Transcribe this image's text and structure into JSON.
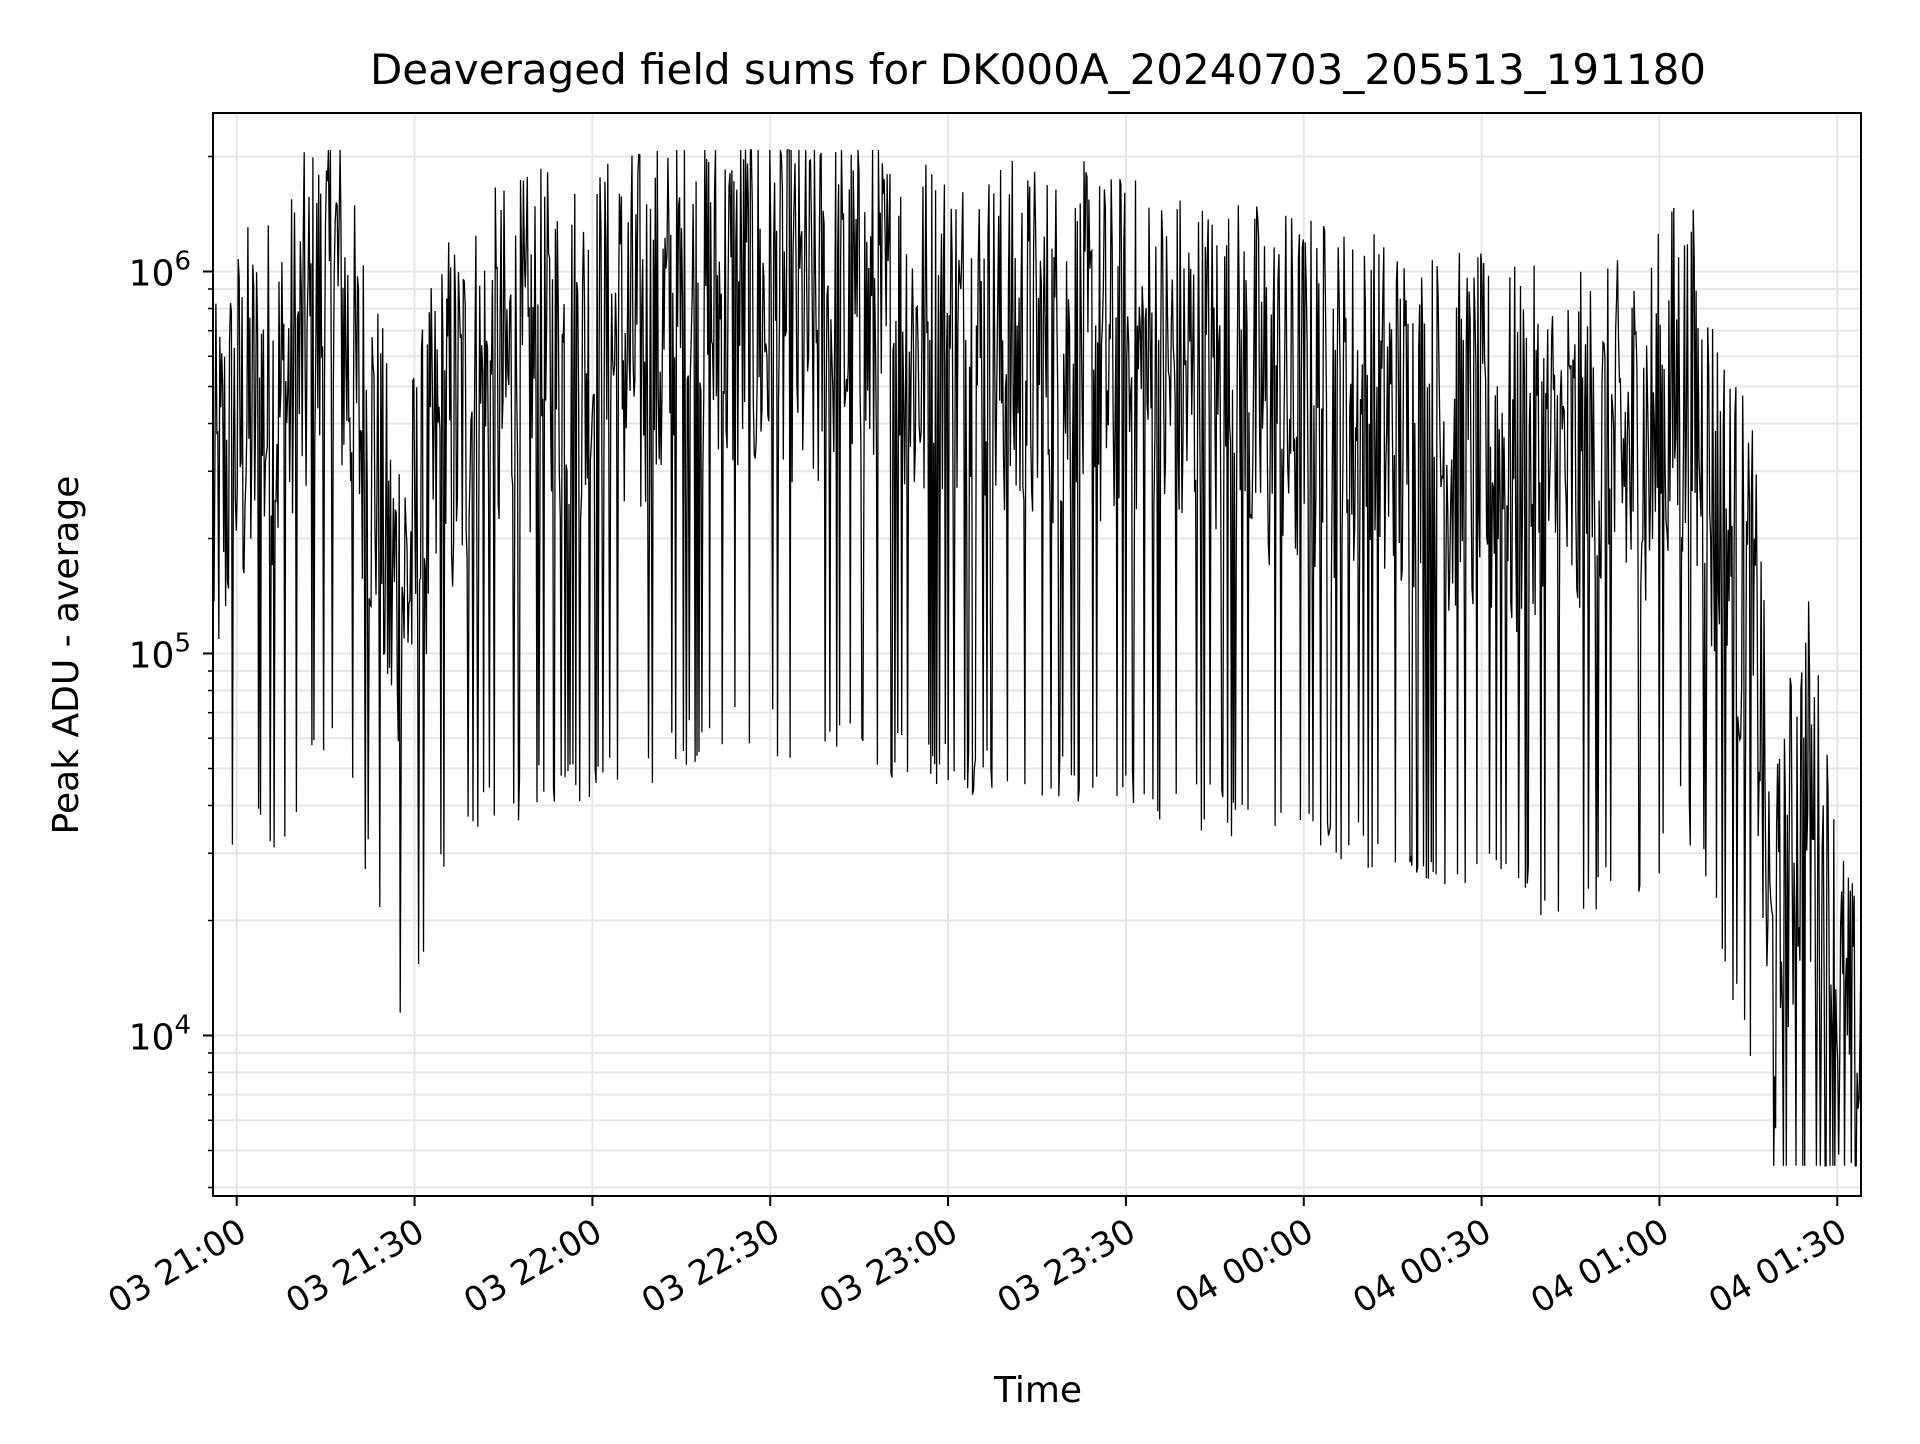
{
  "chart_data": {
    "type": "line",
    "title": "Deaveraged field sums for DK000A_20240703_205513_191180",
    "xlabel": "Time",
    "ylabel": "Peak ADU - average",
    "y_scale": "log",
    "ylim": [
      3800,
      2600000
    ],
    "xlim": [
      "2024-07-03 20:56",
      "2024-07-04 01:34"
    ],
    "grid": true,
    "x_ticks": [
      {
        "time": "2024-07-03 21:00",
        "label": "03 21:00"
      },
      {
        "time": "2024-07-03 21:30",
        "label": "03 21:30"
      },
      {
        "time": "2024-07-03 22:00",
        "label": "03 22:00"
      },
      {
        "time": "2024-07-03 22:30",
        "label": "03 22:30"
      },
      {
        "time": "2024-07-03 23:00",
        "label": "03 23:00"
      },
      {
        "time": "2024-07-03 23:30",
        "label": "03 23:30"
      },
      {
        "time": "2024-07-04 00:00",
        "label": "04 00:00"
      },
      {
        "time": "2024-07-04 00:30",
        "label": "04 00:30"
      },
      {
        "time": "2024-07-04 01:00",
        "label": "04 01:00"
      },
      {
        "time": "2024-07-04 01:30",
        "label": "04 01:30"
      }
    ],
    "y_ticks": [
      {
        "value": 10000,
        "base": "10",
        "exp": "4"
      },
      {
        "value": 100000,
        "base": "10",
        "exp": "5"
      },
      {
        "value": 1000000,
        "base": "10",
        "exp": "6"
      }
    ],
    "series": [
      {
        "color": "#000000",
        "envelope_note_excluded": true,
        "points": [
          [
            "2024-07-03 20:56",
            250000
          ],
          [
            "2024-07-03 21:00",
            420000
          ],
          [
            "2024-07-03 21:04",
            480000
          ],
          [
            "2024-07-03 21:08",
            500000
          ],
          [
            "2024-07-03 21:12",
            700000
          ],
          [
            "2024-07-03 21:15",
            900000
          ],
          [
            "2024-07-03 21:17",
            1100000
          ],
          [
            "2024-07-03 21:20",
            500000
          ],
          [
            "2024-07-03 21:23",
            380000
          ],
          [
            "2024-07-03 21:26",
            160000
          ],
          [
            "2024-07-03 21:29",
            180000
          ],
          [
            "2024-07-03 21:32",
            260000
          ],
          [
            "2024-07-03 21:35",
            420000
          ],
          [
            "2024-07-03 21:40",
            500000
          ],
          [
            "2024-07-03 21:45",
            560000
          ],
          [
            "2024-07-03 21:50",
            600000
          ],
          [
            "2024-07-03 21:55",
            620000
          ],
          [
            "2024-07-03 22:00",
            650000
          ],
          [
            "2024-07-03 22:05",
            700000
          ],
          [
            "2024-07-03 22:10",
            720000
          ],
          [
            "2024-07-03 22:15",
            800000
          ],
          [
            "2024-07-03 22:20",
            850000
          ],
          [
            "2024-07-03 22:25",
            900000
          ],
          [
            "2024-07-03 22:30",
            850000
          ],
          [
            "2024-07-03 22:35",
            820000
          ],
          [
            "2024-07-03 22:40",
            800000
          ],
          [
            "2024-07-03 22:45",
            780000
          ],
          [
            "2024-07-03 22:50",
            760000
          ],
          [
            "2024-07-03 22:55",
            720000
          ],
          [
            "2024-07-03 23:00",
            700000
          ],
          [
            "2024-07-03 23:05",
            680000
          ],
          [
            "2024-07-03 23:10",
            660000
          ],
          [
            "2024-07-03 23:15",
            650000
          ],
          [
            "2024-07-03 23:20",
            640000
          ],
          [
            "2024-07-03 23:25",
            620000
          ],
          [
            "2024-07-03 23:30",
            600000
          ],
          [
            "2024-07-03 23:35",
            580000
          ],
          [
            "2024-07-03 23:40",
            560000
          ],
          [
            "2024-07-03 23:45",
            540000
          ],
          [
            "2024-07-03 23:50",
            520000
          ],
          [
            "2024-07-03 23:55",
            500000
          ],
          [
            "2024-07-04 00:00",
            480000
          ],
          [
            "2024-07-04 00:05",
            460000
          ],
          [
            "2024-07-04 00:10",
            440000
          ],
          [
            "2024-07-04 00:15",
            420000
          ],
          [
            "2024-07-04 00:20",
            400000
          ],
          [
            "2024-07-04 00:25",
            380000
          ],
          [
            "2024-07-04 00:30",
            360000
          ],
          [
            "2024-07-04 00:35",
            340000
          ],
          [
            "2024-07-04 00:40",
            330000
          ],
          [
            "2024-07-04 00:45",
            320000
          ],
          [
            "2024-07-04 00:50",
            330000
          ],
          [
            "2024-07-04 00:55",
            360000
          ],
          [
            "2024-07-04 01:00",
            420000
          ],
          [
            "2024-07-04 01:03",
            560000
          ],
          [
            "2024-07-04 01:06",
            480000
          ],
          [
            "2024-07-04 01:09",
            300000
          ],
          [
            "2024-07-04 01:12",
            200000
          ],
          [
            "2024-07-04 01:15",
            150000
          ],
          [
            "2024-07-04 01:17",
            90000
          ],
          [
            "2024-07-04 01:18",
            30000
          ],
          [
            "2024-07-04 01:19",
            15000
          ],
          [
            "2024-07-04 01:21",
            22000
          ],
          [
            "2024-07-04 01:23",
            40000
          ],
          [
            "2024-07-04 01:25",
            50000
          ],
          [
            "2024-07-04 01:27",
            30000
          ],
          [
            "2024-07-04 01:29",
            18000
          ],
          [
            "2024-07-04 01:31",
            11000
          ],
          [
            "2024-07-04 01:33",
            8000
          ],
          [
            "2024-07-04 01:34",
            12000
          ]
        ]
      }
    ]
  }
}
